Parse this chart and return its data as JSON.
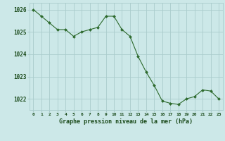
{
  "hours": [
    0,
    1,
    2,
    3,
    4,
    5,
    6,
    7,
    8,
    9,
    10,
    11,
    12,
    13,
    14,
    15,
    16,
    17,
    18,
    19,
    20,
    21,
    22,
    23
  ],
  "pressure": [
    1026.0,
    1025.7,
    1025.4,
    1025.1,
    1025.1,
    1024.8,
    1025.0,
    1025.1,
    1025.2,
    1025.7,
    1025.7,
    1025.1,
    1024.8,
    1023.9,
    1023.2,
    1022.6,
    1021.9,
    1021.8,
    1021.75,
    1022.0,
    1022.1,
    1022.4,
    1022.35,
    1022.0
  ],
  "line_color": "#2d6a2d",
  "marker_color": "#2d6a2d",
  "bg_color": "#cce8e8",
  "grid_color": "#aacccc",
  "xlabel": "Graphe pression niveau de la mer (hPa)",
  "xlabel_color": "#1a4a1a",
  "ytick_color": "#1a4a1a",
  "xtick_color": "#1a4a1a",
  "ylim": [
    1021.5,
    1026.3
  ],
  "yticks": [
    1022,
    1023,
    1024,
    1025,
    1026
  ],
  "xticks": [
    0,
    1,
    2,
    3,
    4,
    5,
    6,
    7,
    8,
    9,
    10,
    11,
    12,
    13,
    14,
    15,
    16,
    17,
    18,
    19,
    20,
    21,
    22,
    23
  ]
}
